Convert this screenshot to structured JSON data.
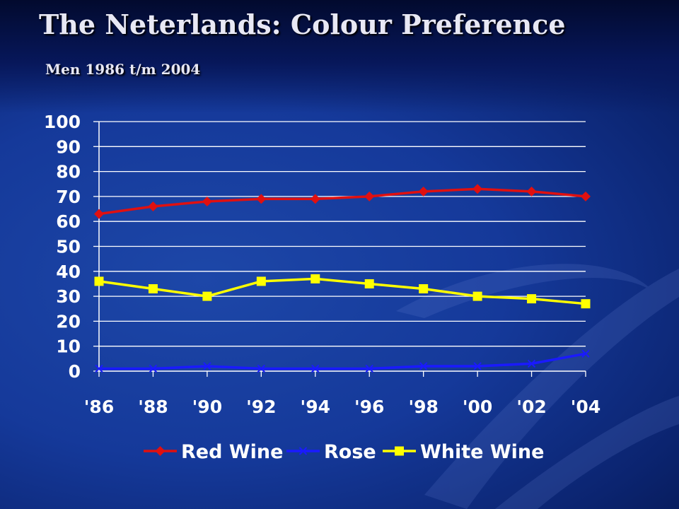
{
  "slide": {
    "title": "The Neterlands: Colour Preference",
    "subtitle": "Men 1986 t/m 2004"
  },
  "chart_data": {
    "type": "line",
    "title": "The Neterlands: Colour Preference",
    "subtitle": "Men 1986 t/m 2004",
    "xlabel": "",
    "ylabel": "",
    "categories": [
      "'86",
      "'88",
      "'90",
      "'92",
      "'94",
      "'96",
      "'98",
      "'00",
      "'02",
      "'04"
    ],
    "ylim": [
      0,
      100
    ],
    "yticks": [
      0,
      10,
      20,
      30,
      40,
      50,
      60,
      70,
      80,
      90,
      100
    ],
    "grid": true,
    "legend_position": "bottom",
    "series": [
      {
        "name": "Red Wine",
        "color": "#e01010",
        "marker": "diamond",
        "values": [
          63,
          66,
          68,
          69,
          69,
          70,
          72,
          73,
          72,
          70
        ]
      },
      {
        "name": "Rose",
        "color": "#1a1aff",
        "marker": "x",
        "values": [
          1,
          1,
          2,
          1,
          1,
          1,
          2,
          2,
          3,
          7
        ]
      },
      {
        "name": "White Wine",
        "color": "#ffff00",
        "marker": "square",
        "values": [
          36,
          33,
          30,
          36,
          37,
          35,
          33,
          30,
          29,
          27
        ]
      }
    ]
  }
}
